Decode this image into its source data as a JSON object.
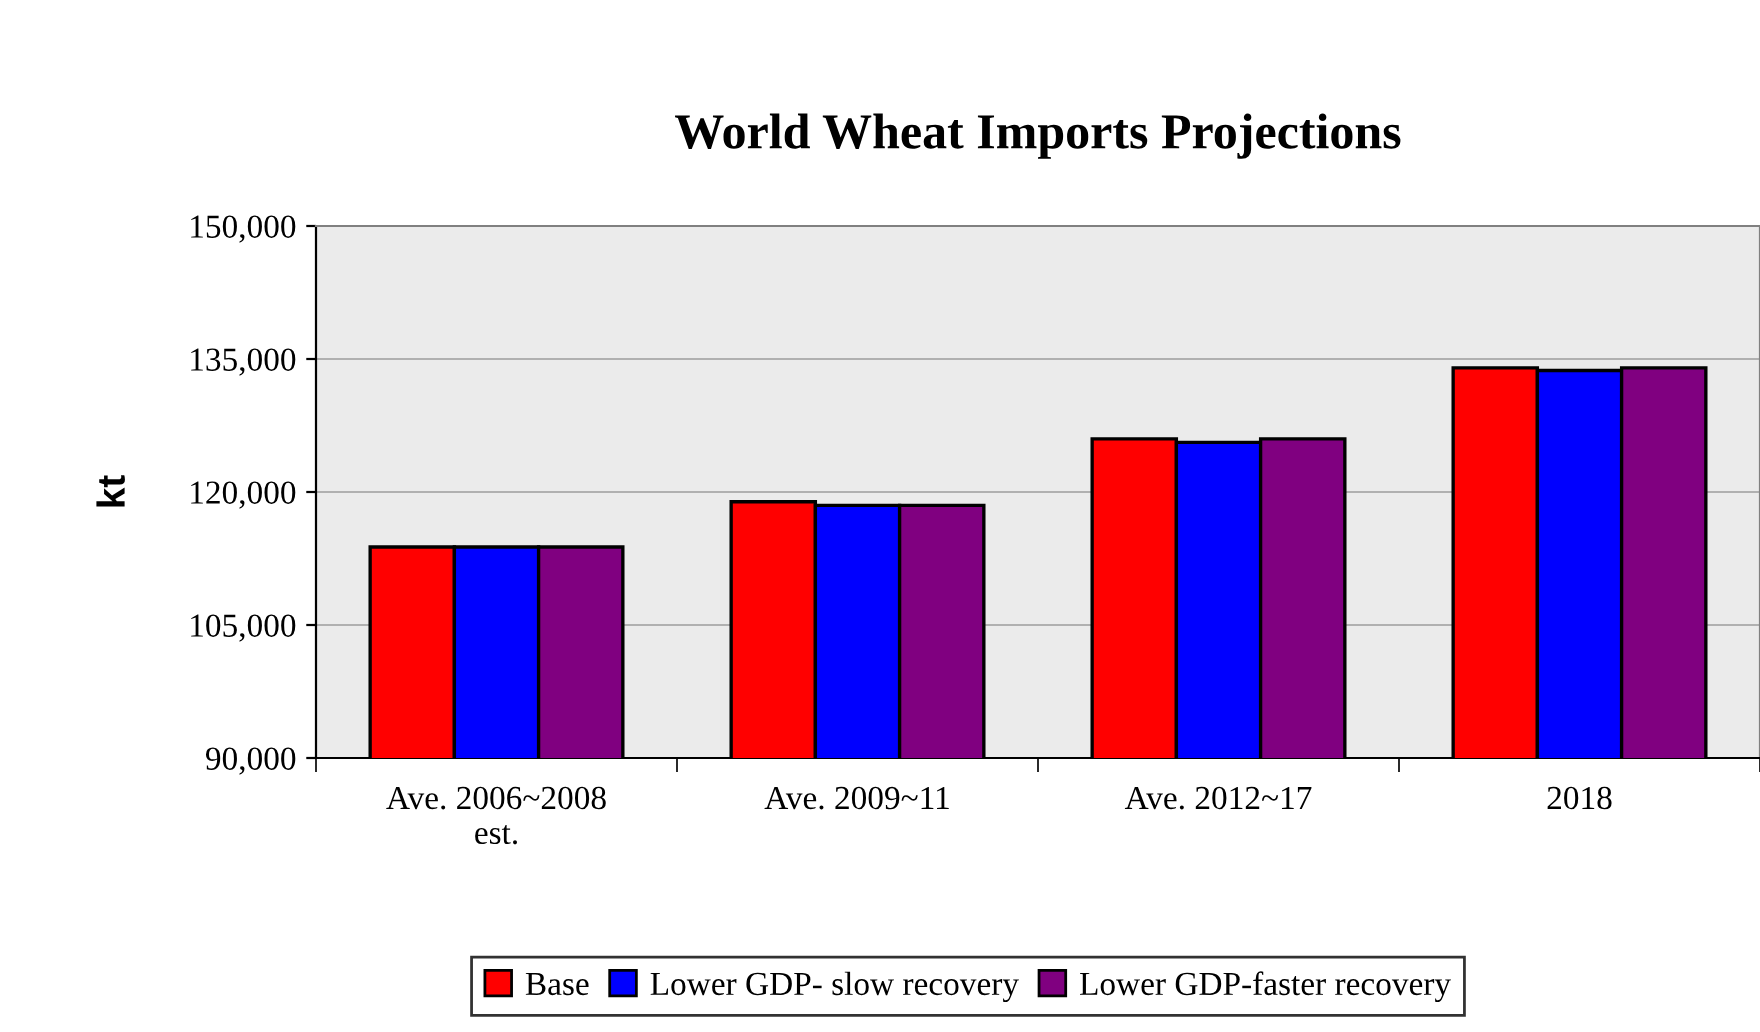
{
  "chart_data": {
    "type": "bar",
    "title": "World Wheat Imports Projections",
    "ylabel": "kt",
    "categories": [
      "Ave. 2006~2008\nest.",
      "Ave. 2009~11",
      "Ave. 2012~17",
      "2018"
    ],
    "series": [
      {
        "name": "Base",
        "color": "#ff0000",
        "values": [
          113800,
          118900,
          126000,
          134000
        ]
      },
      {
        "name": "Lower GDP- slow recovery",
        "color": "#0000ff",
        "values": [
          113800,
          118500,
          125600,
          133700
        ]
      },
      {
        "name": "Lower GDP-faster recovery",
        "color": "#800080",
        "values": [
          113800,
          118500,
          126000,
          134000
        ]
      }
    ],
    "ylim": [
      90000,
      150000
    ],
    "yticks": [
      {
        "value": 90000,
        "label": "90,000"
      },
      {
        "value": 105000,
        "label": "105,000"
      },
      {
        "value": 120000,
        "label": "120,000"
      },
      {
        "value": 135000,
        "label": "135,000"
      },
      {
        "value": 150000,
        "label": "150,000"
      }
    ],
    "grid": "y",
    "legend": "bottom"
  }
}
